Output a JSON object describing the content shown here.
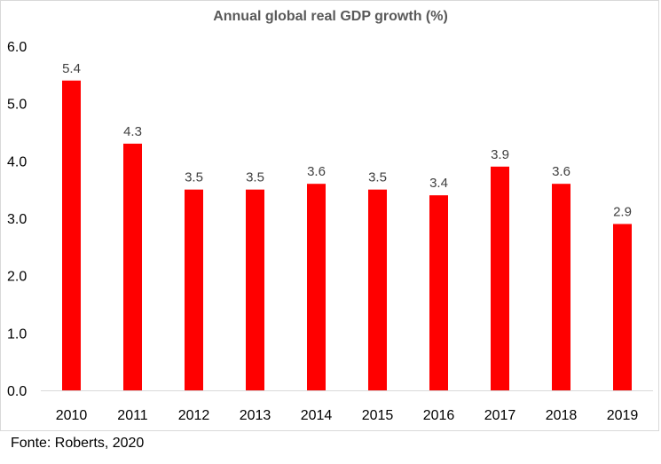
{
  "chart_data": {
    "type": "bar",
    "title": "Annual global real GDP growth (%)",
    "categories": [
      "2010",
      "2011",
      "2012",
      "2013",
      "2014",
      "2015",
      "2016",
      "2017",
      "2018",
      "2019"
    ],
    "values": [
      5.4,
      4.3,
      3.5,
      3.5,
      3.6,
      3.5,
      3.4,
      3.9,
      3.6,
      2.9
    ],
    "data_labels": [
      "5.4",
      "4.3",
      "3.5",
      "3.5",
      "3.6",
      "3.5",
      "3.4",
      "3.9",
      "3.6",
      "2.9"
    ],
    "y_ticks": [
      "0.0",
      "1.0",
      "2.0",
      "3.0",
      "4.0",
      "5.0",
      "6.0"
    ],
    "ylim": [
      0,
      6
    ],
    "xlabel": "",
    "ylabel": "",
    "grid": false,
    "bar_color": "#ff0000"
  },
  "source_note": "Fonte: Roberts, 2020"
}
